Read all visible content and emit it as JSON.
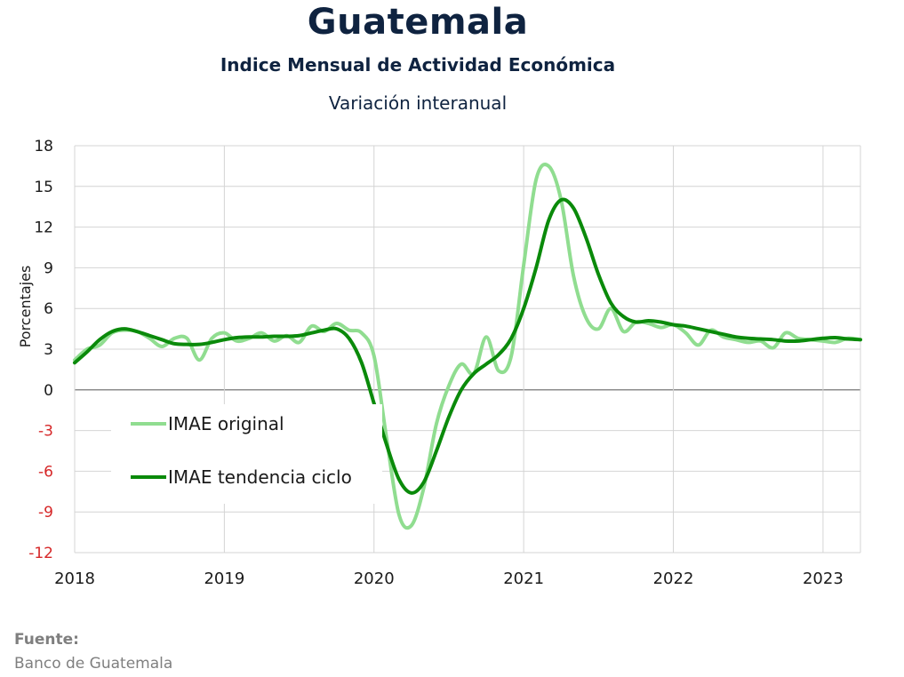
{
  "header": {
    "title": "Guatemala",
    "subtitle": "Indice Mensual de  Actividad Económica",
    "subsubtitle": "Variación interanual"
  },
  "source": {
    "label": "Fuente:",
    "text": "Banco de Guatemala"
  },
  "chart_data": {
    "type": "line",
    "ylabel": "Porcentajes",
    "xlabel": "",
    "ylim": [
      -12,
      18
    ],
    "yticks": [
      "18",
      "15",
      "12",
      "9",
      "6",
      "3",
      "0",
      "-3",
      "-6",
      "-9",
      "-12"
    ],
    "negative_tick_color": "#d62728",
    "xlim": [
      2018.0,
      2023.25
    ],
    "xticks": [
      "2018",
      "2019",
      "2020",
      "2021",
      "2022",
      "2023"
    ],
    "grid": true,
    "legend_placement": "lower-left",
    "series": [
      {
        "name": "IMAE original",
        "color": "#90dd90",
        "x": [
          2018.0,
          2018.083,
          2018.167,
          2018.25,
          2018.333,
          2018.417,
          2018.5,
          2018.583,
          2018.667,
          2018.75,
          2018.833,
          2018.917,
          2019.0,
          2019.083,
          2019.167,
          2019.25,
          2019.333,
          2019.417,
          2019.5,
          2019.583,
          2019.667,
          2019.75,
          2019.833,
          2019.917,
          2020.0,
          2020.083,
          2020.167,
          2020.25,
          2020.333,
          2020.417,
          2020.5,
          2020.583,
          2020.667,
          2020.75,
          2020.833,
          2020.917,
          2021.0,
          2021.083,
          2021.167,
          2021.25,
          2021.333,
          2021.417,
          2021.5,
          2021.583,
          2021.667,
          2021.75,
          2021.833,
          2021.917,
          2022.0,
          2022.083,
          2022.167,
          2022.25,
          2022.333,
          2022.417,
          2022.5,
          2022.583,
          2022.667,
          2022.75,
          2022.833,
          2022.917,
          2023.0,
          2023.083,
          2023.167,
          2023.25
        ],
        "values": [
          2.2,
          3.0,
          3.3,
          4.2,
          4.4,
          4.3,
          3.8,
          3.2,
          3.8,
          3.8,
          2.2,
          3.8,
          4.2,
          3.6,
          3.8,
          4.2,
          3.6,
          4.0,
          3.5,
          4.7,
          4.3,
          4.9,
          4.4,
          4.2,
          2.5,
          -3.5,
          -9.2,
          -10.0,
          -7.2,
          -2.5,
          0.3,
          1.9,
          1.2,
          3.9,
          1.4,
          2.5,
          9.2,
          15.5,
          16.5,
          14.0,
          8.4,
          5.3,
          4.5,
          6.0,
          4.3,
          5.0,
          4.9,
          4.6,
          4.8,
          4.2,
          3.3,
          4.4,
          3.9,
          3.7,
          3.5,
          3.6,
          3.1,
          4.2,
          3.8,
          3.7,
          3.6,
          3.5,
          3.8,
          3.7
        ]
      },
      {
        "name": "IMAE tendencia ciclo",
        "color": "#0a8a0a",
        "x": [
          2018.0,
          2018.083,
          2018.167,
          2018.25,
          2018.333,
          2018.417,
          2018.5,
          2018.583,
          2018.667,
          2018.75,
          2018.833,
          2018.917,
          2019.0,
          2019.083,
          2019.167,
          2019.25,
          2019.333,
          2019.417,
          2019.5,
          2019.583,
          2019.667,
          2019.75,
          2019.833,
          2019.917,
          2020.0,
          2020.083,
          2020.167,
          2020.25,
          2020.333,
          2020.417,
          2020.5,
          2020.583,
          2020.667,
          2020.75,
          2020.833,
          2020.917,
          2021.0,
          2021.083,
          2021.167,
          2021.25,
          2021.333,
          2021.417,
          2021.5,
          2021.583,
          2021.667,
          2021.75,
          2021.833,
          2021.917,
          2022.0,
          2022.083,
          2022.167,
          2022.25,
          2022.333,
          2022.417,
          2022.5,
          2022.583,
          2022.667,
          2022.75,
          2022.833,
          2022.917,
          2023.0,
          2023.083,
          2023.167,
          2023.25
        ],
        "values": [
          2.0,
          2.8,
          3.7,
          4.3,
          4.5,
          4.3,
          4.0,
          3.7,
          3.4,
          3.35,
          3.35,
          3.5,
          3.7,
          3.85,
          3.9,
          3.9,
          3.95,
          3.95,
          4.0,
          4.2,
          4.4,
          4.5,
          3.8,
          2.0,
          -1.0,
          -4.0,
          -6.6,
          -7.6,
          -6.8,
          -4.5,
          -2.0,
          0.0,
          1.2,
          1.9,
          2.6,
          3.8,
          6.0,
          9.0,
          12.5,
          14.0,
          13.4,
          11.2,
          8.5,
          6.4,
          5.4,
          5.0,
          5.1,
          5.0,
          4.8,
          4.7,
          4.5,
          4.3,
          4.1,
          3.9,
          3.8,
          3.75,
          3.7,
          3.6,
          3.6,
          3.7,
          3.8,
          3.85,
          3.75,
          3.7
        ]
      }
    ]
  }
}
